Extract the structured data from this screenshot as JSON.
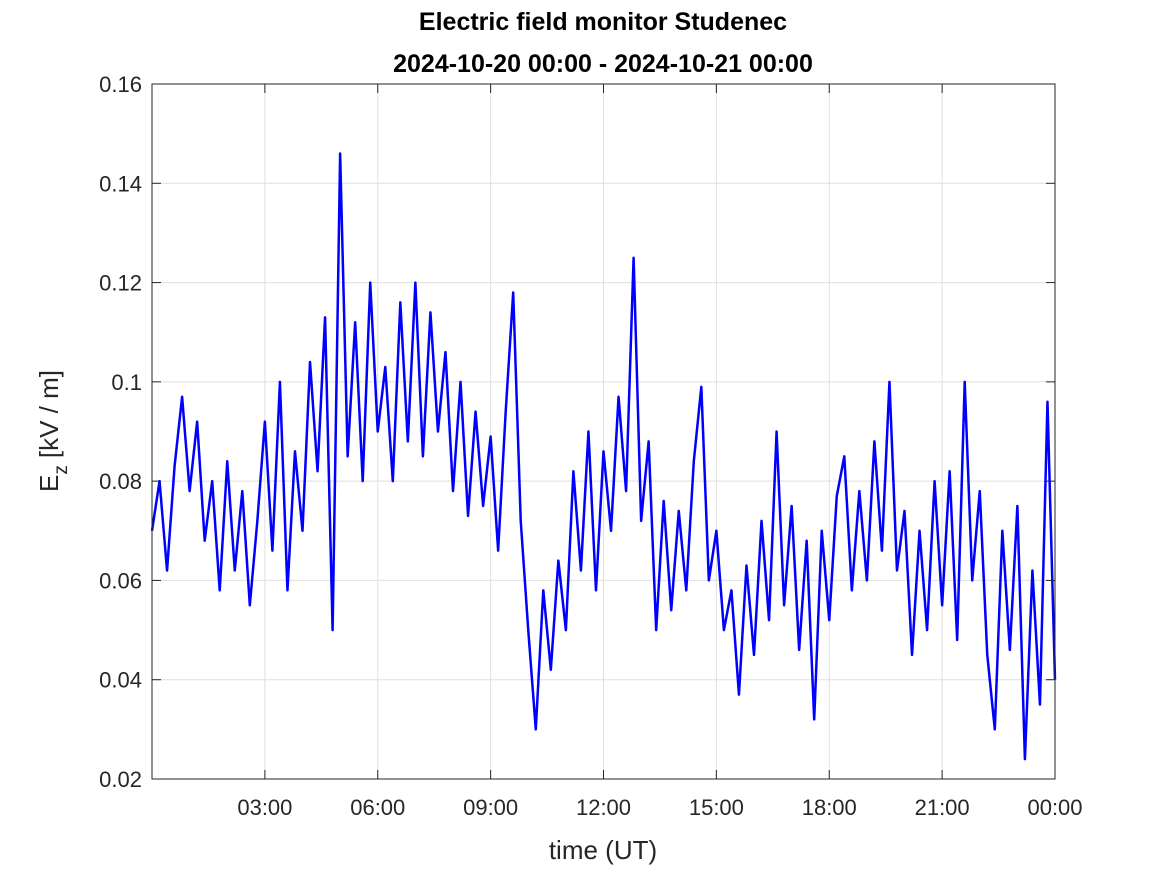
{
  "chart_data": {
    "type": "line",
    "title": "Electric field monitor Studenec",
    "subtitle": "2024-10-20 00:00 - 2024-10-21 00:00",
    "xlabel": "time (UT)",
    "ylabel": {
      "symbol": "E",
      "subscript": "z",
      "unit": "[kV / m]"
    },
    "xlim": [
      0,
      24
    ],
    "xticks": [
      {
        "value": 3,
        "label": "03:00"
      },
      {
        "value": 6,
        "label": "06:00"
      },
      {
        "value": 9,
        "label": "09:00"
      },
      {
        "value": 12,
        "label": "12:00"
      },
      {
        "value": 15,
        "label": "15:00"
      },
      {
        "value": 18,
        "label": "18:00"
      },
      {
        "value": 21,
        "label": "21:00"
      },
      {
        "value": 24,
        "label": "00:00"
      }
    ],
    "ylim": [
      0.02,
      0.16
    ],
    "yticks": [
      0.02,
      0.04,
      0.06,
      0.08,
      0.1,
      0.12,
      0.14,
      0.16
    ],
    "grid": true,
    "x": [
      0,
      0.2,
      0.4,
      0.6,
      0.8,
      1,
      1.2,
      1.4,
      1.6,
      1.8,
      2,
      2.2,
      2.4,
      2.6,
      2.8,
      3,
      3.2,
      3.4,
      3.6,
      3.8,
      4,
      4.2,
      4.4,
      4.6,
      4.8,
      5,
      5.2,
      5.4,
      5.6,
      5.8,
      6,
      6.2,
      6.4,
      6.6,
      6.8,
      7,
      7.2,
      7.4,
      7.6,
      7.8,
      8,
      8.2,
      8.4,
      8.6,
      8.8,
      9,
      9.2,
      9.4,
      9.6,
      9.8,
      10,
      10.2,
      10.4,
      10.6,
      10.8,
      11,
      11.2,
      11.4,
      11.6,
      11.8,
      12,
      12.2,
      12.4,
      12.6,
      12.8,
      13,
      13.2,
      13.4,
      13.6,
      13.8,
      14,
      14.2,
      14.4,
      14.6,
      14.8,
      15,
      15.2,
      15.4,
      15.6,
      15.8,
      16,
      16.2,
      16.4,
      16.6,
      16.8,
      17,
      17.2,
      17.4,
      17.6,
      17.8,
      18,
      18.2,
      18.4,
      18.6,
      18.8,
      19,
      19.2,
      19.4,
      19.6,
      19.8,
      20,
      20.2,
      20.4,
      20.6,
      20.8,
      21,
      21.2,
      21.4,
      21.6,
      21.8,
      22,
      22.2,
      22.4,
      22.6,
      22.8,
      23,
      23.2,
      23.4,
      23.6,
      23.8,
      24
    ],
    "series": [
      {
        "color": "#0000ff",
        "values": [
          0.07,
          0.08,
          0.062,
          0.083,
          0.097,
          0.078,
          0.092,
          0.068,
          0.08,
          0.058,
          0.084,
          0.062,
          0.078,
          0.055,
          0.072,
          0.092,
          0.066,
          0.1,
          0.058,
          0.086,
          0.07,
          0.104,
          0.082,
          0.113,
          0.05,
          0.146,
          0.085,
          0.112,
          0.08,
          0.12,
          0.09,
          0.103,
          0.08,
          0.116,
          0.088,
          0.12,
          0.085,
          0.114,
          0.09,
          0.106,
          0.078,
          0.1,
          0.073,
          0.094,
          0.075,
          0.089,
          0.066,
          0.094,
          0.118,
          0.072,
          0.05,
          0.03,
          0.058,
          0.042,
          0.064,
          0.05,
          0.082,
          0.062,
          0.09,
          0.058,
          0.086,
          0.07,
          0.097,
          0.078,
          0.125,
          0.072,
          0.088,
          0.05,
          0.076,
          0.054,
          0.074,
          0.058,
          0.084,
          0.099,
          0.06,
          0.07,
          0.05,
          0.058,
          0.037,
          0.063,
          0.045,
          0.072,
          0.052,
          0.09,
          0.055,
          0.075,
          0.046,
          0.068,
          0.032,
          0.07,
          0.052,
          0.077,
          0.085,
          0.058,
          0.078,
          0.06,
          0.088,
          0.066,
          0.1,
          0.062,
          0.074,
          0.045,
          0.07,
          0.05,
          0.08,
          0.055,
          0.082,
          0.048,
          0.1,
          0.06,
          0.078,
          0.045,
          0.03,
          0.07,
          0.046,
          0.075,
          0.024,
          0.062,
          0.035,
          0.096,
          0.04
        ]
      }
    ]
  }
}
